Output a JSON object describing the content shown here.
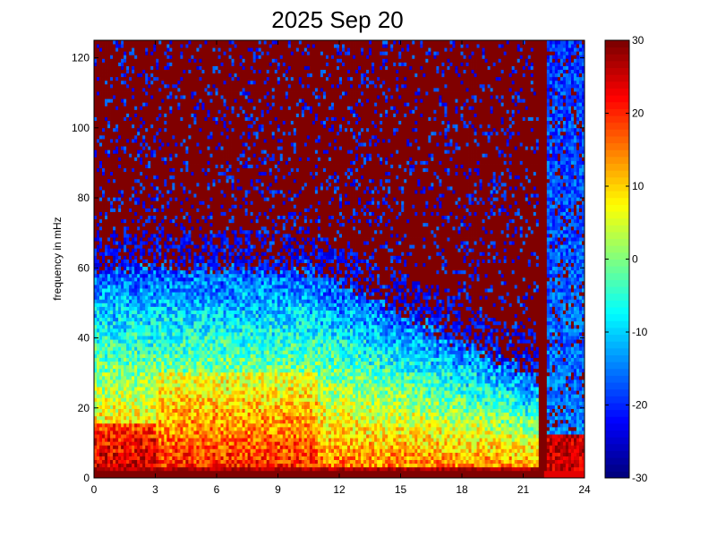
{
  "chart_data": {
    "type": "heatmap",
    "title": "2025 Sep 20",
    "xlabel": "",
    "ylabel": "frequency in mHz",
    "xlim": [
      0,
      24
    ],
    "ylim": [
      0,
      125
    ],
    "x_ticks": [
      0,
      3,
      6,
      9,
      12,
      15,
      18,
      21,
      24
    ],
    "y_ticks": [
      0,
      20,
      40,
      60,
      80,
      100,
      120
    ],
    "colormap": "jet",
    "colorbar": {
      "range": [
        -30,
        30
      ],
      "ticks": [
        30,
        20,
        10,
        0,
        -10,
        -20,
        -30
      ]
    },
    "grid": false,
    "regions": [
      {
        "note": "saturated band near 0-3 mHz across full day",
        "x": [
          0,
          22
        ],
        "y": [
          0,
          3
        ],
        "value": 30
      },
      {
        "note": "intense low-frequency activity",
        "x": [
          0,
          3
        ],
        "y": [
          3,
          18
        ],
        "value": 22
      },
      {
        "note": "broadband noise envelope, upper edge ~55 mHz at 0-12 h, decreasing to ~25 mHz by 21 h",
        "x": [
          0,
          21
        ],
        "y": [
          3,
          55
        ],
        "value": -8
      },
      {
        "note": "background (saturated)",
        "x": [
          0,
          24
        ],
        "y": [
          55,
          125
        ],
        "value": 30
      },
      {
        "note": "full-column activity after 22 h",
        "x": [
          22,
          24
        ],
        "y": [
          0,
          125
        ],
        "value": -15
      }
    ]
  }
}
